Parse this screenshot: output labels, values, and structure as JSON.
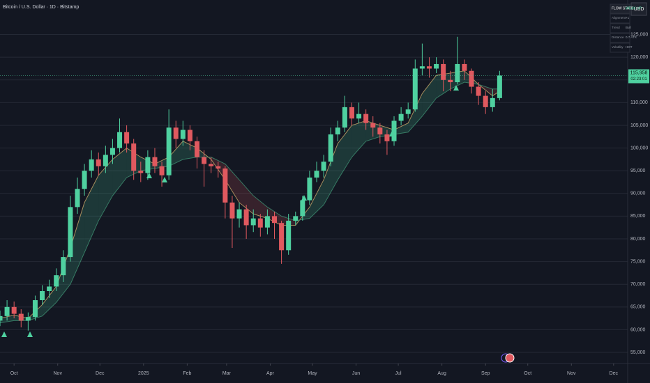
{
  "header": {
    "title": "Bitcoin / U.S. Dollar · 1D · Bitstamp",
    "currency": "USD"
  },
  "status_table": [
    [
      "FLOW STATE",
      "WEAK UP"
    ],
    [
      "Alignment",
      "+1"
    ],
    [
      "Trend",
      "Bull"
    ],
    [
      "Distance",
      "0.7 ATR"
    ],
    [
      "Volatility",
      "HOT"
    ]
  ],
  "chart_data": {
    "type": "candlestick",
    "up_color": "#4fd1a0",
    "down_color": "#e0595f",
    "grid": true,
    "xlim": [
      -10,
      436
    ],
    "xticks": [
      {
        "value": 0,
        "label": "Oct"
      },
      {
        "value": 31,
        "label": "Nov"
      },
      {
        "value": 61,
        "label": "Dec"
      },
      {
        "value": 92,
        "label": "2025"
      },
      {
        "value": 123,
        "label": "Feb"
      },
      {
        "value": 151,
        "label": "Mar"
      },
      {
        "value": 182,
        "label": "Apr"
      },
      {
        "value": 212,
        "label": "May"
      },
      {
        "value": 243,
        "label": "Jun"
      },
      {
        "value": 273,
        "label": "Jul"
      },
      {
        "value": 304,
        "label": "Aug"
      },
      {
        "value": 335,
        "label": "Sep"
      },
      {
        "value": 365,
        "label": "Oct"
      },
      {
        "value": 396,
        "label": "Nov"
      },
      {
        "value": 426,
        "label": "Dec"
      }
    ],
    "ylim": [
      52550,
      132600
    ],
    "yticks": [
      {
        "value": 55000,
        "label": "55,000"
      },
      {
        "value": 60000,
        "label": "60,000"
      },
      {
        "value": 65000,
        "label": "65,000"
      },
      {
        "value": 70000,
        "label": "70,000"
      },
      {
        "value": 75000,
        "label": "75,000"
      },
      {
        "value": 80000,
        "label": "80,000"
      },
      {
        "value": 85000,
        "label": "85,000"
      },
      {
        "value": 90000,
        "label": "90,000"
      },
      {
        "value": 95000,
        "label": "95,000"
      },
      {
        "value": 100000,
        "label": "100,000"
      },
      {
        "value": 105000,
        "label": "105,000"
      },
      {
        "value": 110000,
        "label": "110,000"
      },
      {
        "value": 115000,
        "label": "115,000"
      },
      {
        "value": 120000,
        "label": "120,000"
      },
      {
        "value": 125000,
        "label": "125,000"
      }
    ],
    "x": [
      -10,
      -5,
      0,
      5,
      10,
      15,
      20,
      25,
      30,
      35,
      40,
      45,
      50,
      55,
      60,
      65,
      70,
      75,
      80,
      85,
      90,
      95,
      100,
      105,
      110,
      115,
      120,
      125,
      130,
      135,
      140,
      145,
      150,
      155,
      160,
      165,
      170,
      175,
      180,
      185,
      190,
      195,
      200,
      205,
      210,
      215,
      220,
      225,
      230,
      235,
      240,
      245,
      250,
      255,
      260,
      265,
      270,
      275,
      280,
      285,
      290,
      295,
      300,
      305,
      310,
      315,
      320,
      325,
      330,
      335,
      340,
      345
    ],
    "open": [
      62000,
      63000,
      65000,
      63500,
      62000,
      62800,
      66500,
      68500,
      69500,
      72000,
      76000,
      87000,
      91000,
      95000,
      97500,
      96000,
      98500,
      100000,
      103500,
      101000,
      95000,
      94500,
      98000,
      96000,
      94000,
      104500,
      102000,
      104000,
      101500,
      98000,
      96500,
      96000,
      95500,
      88000,
      84500,
      86500,
      83000,
      84500,
      82500,
      85000,
      83500,
      77500,
      84000,
      85000,
      88500,
      93500,
      95000,
      97000,
      103000,
      104500,
      109000,
      106500,
      107500,
      105500,
      104500,
      103000,
      101500,
      106000,
      107500,
      108500,
      117500,
      118000,
      117500,
      118500,
      115000,
      114500,
      118500,
      117000,
      113500,
      111500,
      109000,
      111000
    ],
    "high": [
      64200,
      66500,
      66200,
      64500,
      63800,
      67500,
      69800,
      71000,
      73500,
      77500,
      89500,
      93500,
      96500,
      99500,
      99000,
      100500,
      102000,
      106500,
      105000,
      102000,
      97000,
      99500,
      100000,
      97000,
      108500,
      106000,
      106000,
      105000,
      102500,
      99500,
      98000,
      97000,
      96000,
      89500,
      88000,
      87500,
      86500,
      85500,
      86500,
      86000,
      84000,
      85500,
      86000,
      89500,
      95000,
      97000,
      98500,
      104500,
      106000,
      111500,
      110000,
      110000,
      108500,
      107000,
      105500,
      104000,
      107000,
      109000,
      110000,
      119500,
      123000,
      120000,
      120000,
      119500,
      117000,
      124500,
      119500,
      117500,
      114500,
      112500,
      113000,
      117000
    ],
    "low": [
      60800,
      62000,
      62500,
      60500,
      59800,
      62000,
      65500,
      67000,
      68500,
      70500,
      75000,
      85500,
      89500,
      93500,
      94000,
      94500,
      96500,
      99000,
      99000,
      93000,
      92500,
      93000,
      94500,
      91500,
      93000,
      100000,
      100500,
      99500,
      95500,
      91500,
      94500,
      93500,
      84500,
      78000,
      82500,
      80000,
      81500,
      80500,
      81000,
      80000,
      74500,
      76500,
      83000,
      84000,
      87500,
      92500,
      93500,
      96000,
      101500,
      103500,
      105000,
      105500,
      104000,
      102500,
      101000,
      98500,
      100500,
      105000,
      106500,
      108000,
      116000,
      115500,
      116500,
      112500,
      112500,
      114000,
      115000,
      112000,
      109500,
      107500,
      108000,
      110500
    ],
    "close": [
      63000,
      65000,
      63500,
      62000,
      62800,
      66500,
      68500,
      69500,
      72000,
      76000,
      87000,
      91000,
      95000,
      97500,
      96000,
      98500,
      100000,
      103500,
      101000,
      95000,
      94500,
      98000,
      96000,
      94000,
      104500,
      102000,
      104000,
      101500,
      98000,
      96500,
      96000,
      95500,
      88000,
      84500,
      86500,
      83000,
      84500,
      82500,
      85000,
      83500,
      77500,
      84000,
      85000,
      88500,
      93500,
      95000,
      97000,
      103000,
      104500,
      109000,
      106500,
      107500,
      105500,
      104500,
      103000,
      101500,
      106000,
      107500,
      108500,
      117500,
      118000,
      117500,
      118500,
      115000,
      114500,
      118500,
      117000,
      113500,
      111500,
      109000,
      111000,
      115958
    ],
    "last_label": "115,958",
    "countdown": "02:23:01",
    "line_x": [
      -10,
      0,
      10,
      20,
      30,
      40,
      50,
      60,
      70,
      80,
      90,
      100,
      110,
      120,
      130,
      140,
      150,
      160,
      170,
      180,
      190,
      200,
      210,
      220,
      230,
      240,
      250,
      260,
      270,
      280,
      290,
      300,
      310,
      320,
      330,
      340,
      345
    ],
    "fast": [
      62500,
      63200,
      62500,
      65500,
      69500,
      78000,
      88000,
      94000,
      97500,
      100000,
      98000,
      96500,
      98000,
      101500,
      100000,
      97500,
      93000,
      88000,
      85500,
      84500,
      83000,
      83000,
      87000,
      93000,
      101000,
      105000,
      106000,
      105000,
      104000,
      105500,
      112000,
      116000,
      116500,
      117000,
      114000,
      111500,
      112500
    ],
    "slow": [
      61500,
      62000,
      62000,
      63000,
      66000,
      70000,
      77000,
      84000,
      89500,
      93500,
      95000,
      95500,
      96000,
      97500,
      98000,
      98000,
      96500,
      93000,
      89500,
      87000,
      85000,
      84000,
      84500,
      87500,
      93000,
      98000,
      101500,
      102500,
      103000,
      103500,
      107000,
      111000,
      113000,
      114500,
      114000,
      113000,
      113000
    ]
  }
}
